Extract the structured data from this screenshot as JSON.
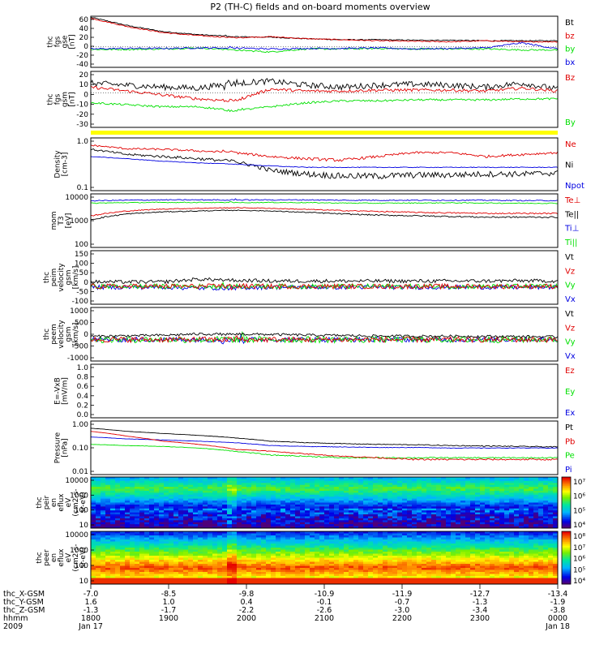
{
  "title": "P2 (TH-C) fields and on-board moments overview",
  "colors": {
    "black": "#000000",
    "red": "#e00000",
    "green": "#00e000",
    "blue": "#0000e0",
    "yellow": "#ffff00"
  },
  "chart_data": [
    {
      "id": "fgs-gse",
      "type": "line",
      "ylabel": [
        "thc",
        "fgs",
        "gse",
        "[nT]"
      ],
      "ylim": [
        -40,
        60
      ],
      "yticks": [
        "60",
        "40",
        "20",
        "0",
        "-20",
        "-40"
      ],
      "legend": [
        {
          "name": "Bt",
          "color": "black"
        },
        {
          "name": "bz",
          "color": "red"
        },
        {
          "name": "by",
          "color": "green"
        },
        {
          "name": "bx",
          "color": "blue"
        }
      ],
      "series": [
        {
          "name": "Bt",
          "color": "black",
          "trend": [
            58,
            42,
            30,
            24,
            20,
            19,
            16,
            14,
            14,
            13,
            13,
            12,
            12,
            12
          ],
          "noise": 1.0
        },
        {
          "name": "bz",
          "color": "red",
          "trend": [
            56,
            40,
            28,
            22,
            18,
            20,
            16,
            14,
            12,
            11,
            10,
            12,
            10,
            10
          ],
          "noise": 1.0
        },
        {
          "name": "by",
          "color": "green",
          "trend": [
            -5,
            -5,
            -4,
            -2,
            -6,
            -10,
            -4,
            -4,
            -3,
            -4,
            -4,
            -4,
            -6,
            -6
          ],
          "noise": 1.5
        },
        {
          "name": "bx",
          "color": "blue",
          "trend": [
            -4,
            -3,
            -3,
            -2,
            -2,
            -4,
            -3,
            -3,
            -2,
            -4,
            -3,
            -2,
            8,
            -4
          ],
          "noise": 1.5
        }
      ]
    },
    {
      "id": "fgs-gsm",
      "type": "line",
      "ylabel": [
        "thc",
        "fgs",
        "gsm",
        "[nT]"
      ],
      "ylim": [
        -35,
        22
      ],
      "yticks": [
        "20",
        "10",
        "0",
        "-10",
        "-20",
        "-30"
      ],
      "legend": [
        {
          "name": "Bz",
          "color": "red"
        },
        {
          "name": "By",
          "color": "green"
        }
      ],
      "series": [
        {
          "name": "Bt",
          "color": "black",
          "trend": [
            10,
            8,
            6,
            5,
            10,
            12,
            8,
            6,
            8,
            9,
            8,
            6,
            10,
            4
          ],
          "noise": 3.0
        },
        {
          "name": "Bz",
          "color": "red",
          "trend": [
            6,
            2,
            -2,
            -6,
            -8,
            4,
            2,
            2,
            3,
            3,
            3,
            2,
            5,
            2
          ],
          "noise": 1.5
        },
        {
          "name": "By",
          "color": "green",
          "trend": [
            -10,
            -12,
            -14,
            -14,
            -18,
            -14,
            -10,
            -8,
            -8,
            -7,
            -7,
            -7,
            -6,
            -6
          ],
          "noise": 1.0
        }
      ]
    },
    {
      "id": "mode-bar",
      "type": "bar",
      "color": "yellow"
    },
    {
      "id": "density",
      "type": "line",
      "scale": "log",
      "ylabel": [
        "Density",
        "[cm-3]"
      ],
      "ylim": [
        0.1,
        1.2
      ],
      "yticks": [
        "1.0",
        "0.1"
      ],
      "legend": [
        {
          "name": "Ne",
          "color": "red"
        },
        {
          "name": "Ni",
          "color": "black"
        },
        {
          "name": "Npot",
          "color": "blue"
        }
      ],
      "series": [
        {
          "name": "Ne",
          "color": "red",
          "trend": [
            0.85,
            0.72,
            0.7,
            0.65,
            0.6,
            0.5,
            0.45,
            0.42,
            0.5,
            0.6,
            0.6,
            0.5,
            0.55,
            0.6
          ],
          "noise": 0.03
        },
        {
          "name": "Ni",
          "color": "black",
          "trend": [
            0.7,
            0.55,
            0.5,
            0.45,
            0.4,
            0.26,
            0.22,
            0.2,
            0.2,
            0.21,
            0.21,
            0.22,
            0.22,
            0.23
          ],
          "noise": 0.03
        },
        {
          "name": "Npot",
          "color": "blue",
          "trend": [
            0.5,
            0.45,
            0.4,
            0.37,
            0.35,
            0.32,
            0.3,
            0.3,
            0.3,
            0.3,
            0.3,
            0.3,
            0.3,
            0.3
          ],
          "noise": 0.005
        }
      ]
    },
    {
      "id": "mom-temp",
      "type": "line",
      "scale": "log",
      "ylabel": [
        "mom",
        "T3",
        "[eV]"
      ],
      "ylim": [
        100,
        12000
      ],
      "yticks": [
        "10000",
        "1000",
        "100"
      ],
      "legend": [
        {
          "name": "Te⊥",
          "color": "red"
        },
        {
          "name": "Te||",
          "color": "black"
        },
        {
          "name": "Ti⊥",
          "color": "blue"
        },
        {
          "name": "Ti||",
          "color": "green"
        }
      ],
      "series": [
        {
          "name": "Ti⊥",
          "color": "blue",
          "trend": [
            6500,
            6800,
            7000,
            7000,
            7000,
            7000,
            7000,
            6800,
            6800,
            6800,
            6800,
            6800,
            6600,
            6600
          ],
          "noise": 300
        },
        {
          "name": "Ti||",
          "color": "green",
          "trend": [
            5200,
            5500,
            5600,
            5600,
            5500,
            5600,
            5500,
            5300,
            5200,
            5300,
            5400,
            5300,
            5200,
            5200
          ],
          "noise": 200
        },
        {
          "name": "Te⊥",
          "color": "red",
          "trend": [
            1700,
            2600,
            3100,
            3300,
            3500,
            3300,
            3000,
            2700,
            2500,
            2300,
            2200,
            2100,
            2100,
            2100
          ],
          "noise": 120
        },
        {
          "name": "Te||",
          "color": "black",
          "trend": [
            1200,
            2000,
            2400,
            2600,
            2800,
            2600,
            2300,
            2000,
            1800,
            1700,
            1600,
            1500,
            1500,
            1500
          ],
          "noise": 100
        }
      ]
    },
    {
      "id": "peim-velocity",
      "type": "line",
      "ylabel": [
        "thc",
        "peim",
        "velocity",
        "gsm",
        "[km/s]"
      ],
      "ylim": [
        -100,
        200
      ],
      "yticks": [
        "150",
        "100",
        "50",
        "0",
        "-50",
        "-100"
      ],
      "legend": [
        {
          "name": "Vt",
          "color": "black"
        },
        {
          "name": "Vz",
          "color": "red"
        },
        {
          "name": "Vy",
          "color": "green"
        },
        {
          "name": "Vx",
          "color": "blue"
        }
      ],
      "series": [
        {
          "name": "Vx",
          "color": "blue",
          "trend": [
            -5,
            -5,
            -5,
            -10,
            -8,
            -5,
            -5,
            -5,
            -5,
            -5,
            -5,
            -5,
            -5,
            -5
          ],
          "noise": 12
        },
        {
          "name": "Vy",
          "color": "green",
          "trend": [
            0,
            0,
            0,
            0,
            0,
            0,
            0,
            0,
            0,
            0,
            0,
            0,
            0,
            0
          ],
          "noise": 14
        },
        {
          "name": "Vz",
          "color": "red",
          "trend": [
            0,
            0,
            0,
            0,
            0,
            0,
            0,
            0,
            0,
            0,
            0,
            0,
            0,
            0
          ],
          "noise": 14
        },
        {
          "name": "Vt",
          "color": "black",
          "trend": [
            25,
            25,
            25,
            40,
            35,
            30,
            30,
            30,
            30,
            30,
            30,
            30,
            32,
            30
          ],
          "noise": 10
        }
      ]
    },
    {
      "id": "peem-velocity",
      "type": "line",
      "ylabel": [
        "thc",
        "peem",
        "velocity",
        "gsm",
        "[km/s]"
      ],
      "ylim": [
        -1000,
        1500
      ],
      "yticks": [
        "1000",
        "500",
        "0",
        "-500",
        "-1000"
      ],
      "legend": [
        {
          "name": "Vt",
          "color": "black"
        },
        {
          "name": "Vz",
          "color": "red"
        },
        {
          "name": "Vy",
          "color": "green"
        },
        {
          "name": "Vx",
          "color": "blue"
        }
      ],
      "series": [
        {
          "name": "Vx",
          "color": "blue",
          "trend": [
            0,
            0,
            0,
            0,
            0,
            0,
            0,
            0,
            0,
            0,
            0,
            0,
            0,
            0
          ],
          "noise": 120
        },
        {
          "name": "Vy",
          "color": "green",
          "trend": [
            0,
            0,
            0,
            0,
            0,
            0,
            0,
            0,
            0,
            0,
            0,
            0,
            0,
            0
          ],
          "noise": 150
        },
        {
          "name": "Vz",
          "color": "red",
          "trend": [
            0,
            0,
            0,
            0,
            0,
            0,
            0,
            0,
            0,
            0,
            0,
            0,
            0,
            0
          ],
          "noise": 130
        },
        {
          "name": "Vt",
          "color": "black",
          "trend": [
            150,
            180,
            200,
            260,
            250,
            240,
            210,
            190,
            170,
            160,
            160,
            150,
            140,
            130
          ],
          "noise": 60
        }
      ]
    },
    {
      "id": "efield",
      "type": "line",
      "ylabel": [
        "E=-VxB",
        "[mV/m]"
      ],
      "ylim": [
        0,
        1.0
      ],
      "yticks": [
        "1.0",
        "0.8",
        "0.6",
        "0.4",
        "0.2",
        "0.0"
      ],
      "legend": [
        {
          "name": "Ez",
          "color": "red"
        },
        {
          "name": "Ey",
          "color": "green"
        },
        {
          "name": "Ex",
          "color": "blue"
        }
      ],
      "series": []
    },
    {
      "id": "pressure",
      "type": "line",
      "scale": "log",
      "ylabel": [
        "Pressure",
        "[nPa]"
      ],
      "ylim": [
        0.01,
        3.0
      ],
      "yticks": [
        "1.00",
        "0.10",
        "0.01"
      ],
      "legend": [
        {
          "name": "Pt",
          "color": "black"
        },
        {
          "name": "Pb",
          "color": "red"
        },
        {
          "name": "Pe",
          "color": "green"
        },
        {
          "name": "Pi",
          "color": "blue"
        }
      ],
      "series": [
        {
          "name": "Pt",
          "color": "black",
          "trend": [
            1.4,
            1.0,
            0.8,
            0.65,
            0.5,
            0.35,
            0.3,
            0.27,
            0.25,
            0.24,
            0.22,
            0.21,
            0.2,
            0.19
          ],
          "noise": 0.01
        },
        {
          "name": "Pi",
          "color": "blue",
          "trend": [
            0.55,
            0.45,
            0.4,
            0.35,
            0.3,
            0.22,
            0.2,
            0.19,
            0.18,
            0.18,
            0.17,
            0.17,
            0.17,
            0.17
          ],
          "noise": 0.005
        },
        {
          "name": "Pe",
          "color": "green",
          "trend": [
            0.25,
            0.22,
            0.2,
            0.17,
            0.12,
            0.08,
            0.07,
            0.06,
            0.06,
            0.06,
            0.06,
            0.06,
            0.06,
            0.06
          ],
          "noise": 0.004
        },
        {
          "name": "Pb",
          "color": "red",
          "trend": [
            1.0,
            0.6,
            0.35,
            0.25,
            0.15,
            0.12,
            0.09,
            0.07,
            0.06,
            0.05,
            0.05,
            0.05,
            0.05,
            0.05
          ],
          "noise": 0.004
        }
      ]
    },
    {
      "id": "peir-spectrogram",
      "type": "heatmap",
      "ylabel": [
        "thc",
        "peir",
        "en",
        "eflux",
        "eV",
        "(cm2-s-",
        "sr-eV)"
      ],
      "ylim": [
        10,
        20000
      ],
      "yticks": [
        "10000",
        "1000",
        "100",
        "10"
      ],
      "colorbar": {
        "labels": [
          "10⁷",
          "10⁶",
          "10⁵",
          "10⁴"
        ]
      },
      "peak_band": 0.78,
      "peak_level": 0.55,
      "low_level": 0.1
    },
    {
      "id": "peer-spectrogram",
      "type": "heatmap",
      "ylabel": [
        "thc",
        "peer",
        "en",
        "eflux",
        "eV",
        "(cm2-s-",
        "sr-eV)"
      ],
      "ylim": [
        10,
        20000
      ],
      "yticks": [
        "10000",
        "1000",
        "100",
        "10"
      ],
      "colorbar": {
        "labels": [
          "10⁸",
          "10⁷",
          "10⁶",
          "10⁵",
          "10⁴"
        ]
      },
      "peak_band": 0.3,
      "peak_level": 0.92,
      "low_level": 0.35
    }
  ],
  "xaxis": {
    "rows": [
      {
        "label": "thc_X-GSM",
        "values": [
          "-7.0",
          "-8.5",
          "-9.8",
          "-10.9",
          "-11.9",
          "-12.7",
          "-13.4"
        ]
      },
      {
        "label": "thc_Y-GSM",
        "values": [
          "1.6",
          "1.0",
          "0.4",
          "-0.1",
          "-0.7",
          "-1.3",
          "-1.9"
        ]
      },
      {
        "label": "thc_Z-GSM",
        "values": [
          "-1.3",
          "-1.7",
          "-2.2",
          "-2.6",
          "-3.0",
          "-3.4",
          "-3.8"
        ]
      },
      {
        "label": "hhmm",
        "values": [
          "1800",
          "1900",
          "2000",
          "2100",
          "2200",
          "2300",
          "0000"
        ]
      },
      {
        "label": "2009",
        "values": [
          "Jan 17",
          "",
          "",
          "",
          "",
          "",
          "Jan 18"
        ]
      }
    ]
  }
}
